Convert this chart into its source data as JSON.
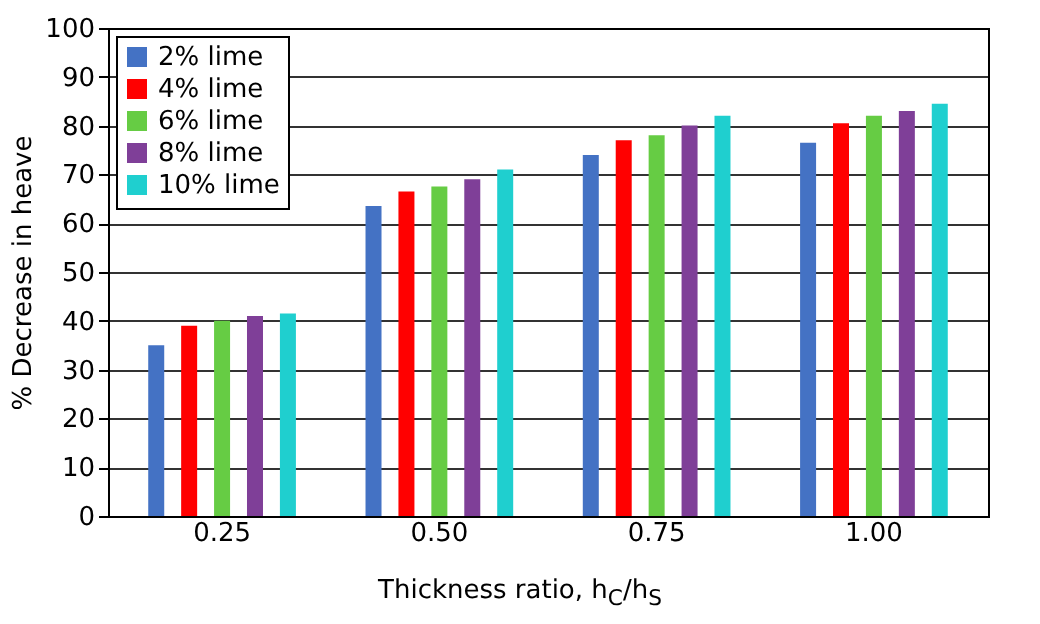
{
  "chart_data": {
    "type": "bar",
    "categories": [
      "0.25",
      "0.50",
      "0.75",
      "1.00"
    ],
    "series": [
      {
        "name": "2% lime",
        "color": "#4472c4",
        "values": [
          35,
          63.5,
          74,
          76.5
        ]
      },
      {
        "name": "4% lime",
        "color": "#ff0000",
        "values": [
          39,
          66.5,
          77,
          80.5
        ]
      },
      {
        "name": "6% lime",
        "color": "#66cc44",
        "values": [
          40,
          67.5,
          78,
          82
        ]
      },
      {
        "name": "8% lime",
        "color": "#7f3f98",
        "values": [
          41,
          69,
          80,
          83
        ]
      },
      {
        "name": "10% lime",
        "color": "#1fcfcf",
        "values": [
          41.5,
          71,
          82,
          84.5
        ]
      }
    ],
    "xlabel": "Thickness ratio, h$_{C}$/h$_{S}$",
    "ylabel": "% Decrease in heave",
    "ylim": [
      0,
      100
    ],
    "yticks": [
      0,
      10,
      20,
      30,
      40,
      50,
      60,
      70,
      80,
      90,
      100
    ],
    "grid": "y",
    "legend": "top left"
  }
}
